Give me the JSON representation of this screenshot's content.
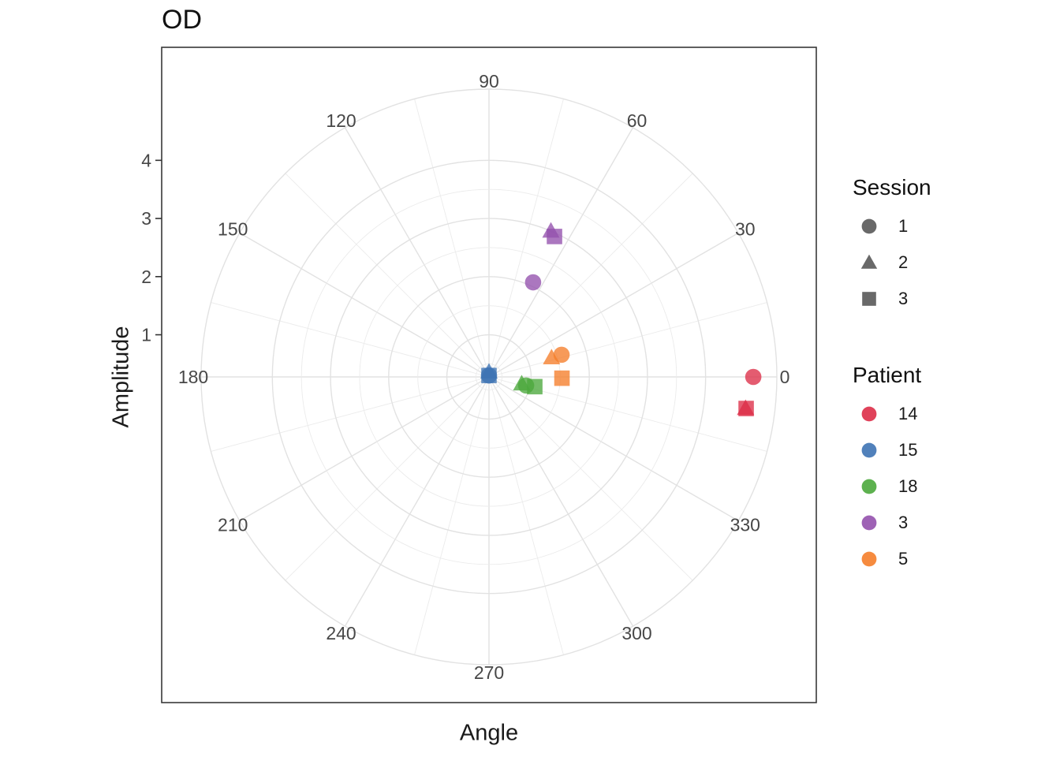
{
  "chart_data": {
    "type": "scatter",
    "coord": "polar",
    "title": "OD",
    "xlabel": "Angle",
    "ylabel": "Amplitude",
    "angle_ticks_deg": [
      0,
      30,
      60,
      90,
      120,
      150,
      180,
      210,
      240,
      270,
      300,
      330
    ],
    "angle_minor_step_deg": 15,
    "r_ticks": [
      1,
      2,
      3,
      4
    ],
    "r_minor_ticks": [
      0.5,
      1.5,
      2.5,
      3.5
    ],
    "r_domain": [
      0.275,
      5.225
    ],
    "grid": true,
    "legend_position": "right",
    "marker_opacity": 0.78,
    "series": [
      {
        "patient": "14",
        "color": "#dd2e48",
        "points": [
          {
            "session": 1,
            "shape": "circle",
            "angle_deg": 0,
            "amplitude": 4.82
          },
          {
            "session": 2,
            "shape": "triangle",
            "angle_deg": 353,
            "amplitude": 4.72
          },
          {
            "session": 3,
            "shape": "square",
            "angle_deg": 353,
            "amplitude": 4.73
          }
        ]
      },
      {
        "patient": "15",
        "color": "#3e73b4",
        "points": [
          {
            "session": 1,
            "shape": "circle",
            "angle_deg": 90,
            "amplitude": 0.3
          },
          {
            "session": 2,
            "shape": "triangle",
            "angle_deg": 90,
            "amplitude": 0.36
          },
          {
            "session": 3,
            "shape": "square",
            "angle_deg": 90,
            "amplitude": 0.3
          }
        ]
      },
      {
        "patient": "18",
        "color": "#4ba83c",
        "points": [
          {
            "session": 1,
            "shape": "circle",
            "angle_deg": 347,
            "amplitude": 0.93
          },
          {
            "session": 2,
            "shape": "triangle",
            "angle_deg": 348,
            "amplitude": 0.85
          },
          {
            "session": 3,
            "shape": "square",
            "angle_deg": 348,
            "amplitude": 1.08
          }
        ]
      },
      {
        "patient": "3",
        "color": "#9451ad",
        "points": [
          {
            "session": 1,
            "shape": "circle",
            "angle_deg": 65,
            "amplitude": 2.07
          },
          {
            "session": 2,
            "shape": "triangle",
            "angle_deg": 67,
            "amplitude": 3.0
          },
          {
            "session": 3,
            "shape": "square",
            "angle_deg": 65,
            "amplitude": 2.94
          }
        ]
      },
      {
        "patient": "5",
        "color": "#f57e2a",
        "points": [
          {
            "session": 1,
            "shape": "circle",
            "angle_deg": 17,
            "amplitude": 1.58
          },
          {
            "session": 2,
            "shape": "triangle",
            "angle_deg": 17,
            "amplitude": 1.4
          },
          {
            "session": 3,
            "shape": "square",
            "angle_deg": 359,
            "amplitude": 1.53
          }
        ]
      }
    ]
  },
  "legend": {
    "session": {
      "title": "Session",
      "marker_color": "#595959",
      "items": [
        {
          "shape": "circle",
          "label": "1"
        },
        {
          "shape": "triangle",
          "label": "2"
        },
        {
          "shape": "square",
          "label": "3"
        }
      ]
    },
    "patient": {
      "title": "Patient",
      "items": [
        {
          "color": "#dd2e48",
          "label": "14"
        },
        {
          "color": "#3e73b4",
          "label": "15"
        },
        {
          "color": "#4ba83c",
          "label": "18"
        },
        {
          "color": "#9451ad",
          "label": "3"
        },
        {
          "color": "#f57e2a",
          "label": "5"
        }
      ]
    }
  },
  "colors": {
    "grid_major": "#e2e2e2",
    "grid_minor": "#ebebeb",
    "panel_border": "#383838",
    "axis_text": "#474747",
    "tick_mark": "#333333"
  }
}
